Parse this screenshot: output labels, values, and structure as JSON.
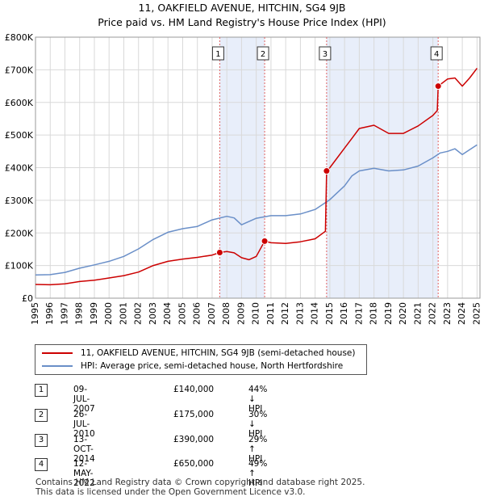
{
  "titles": {
    "line1": "11, OAKFIELD AVENUE, HITCHIN, SG4 9JB",
    "line2": "Price paid vs. HM Land Registry's House Price Index (HPI)"
  },
  "colors": {
    "property": "#cc0000",
    "hpi": "#6a8fc8",
    "shade": "#e8eefa",
    "vline": "#e06060",
    "grid": "#d9d9d9"
  },
  "legend": {
    "property_label": "11, OAKFIELD AVENUE, HITCHIN, SG4 9JB (semi-detached house)",
    "hpi_label": "HPI: Average price, semi-detached house, North Hertfordshire"
  },
  "transactions": [
    {
      "num": "1",
      "date": "09-JUL-2007",
      "price": "£140,000",
      "hpi": "44% ↓ HPI"
    },
    {
      "num": "2",
      "date": "26-JUL-2010",
      "price": "£175,000",
      "hpi": "30% ↓ HPI"
    },
    {
      "num": "3",
      "date": "13-OCT-2014",
      "price": "£390,000",
      "hpi": "29% ↑ HPI"
    },
    {
      "num": "4",
      "date": "12-MAY-2022",
      "price": "£650,000",
      "hpi": "49% ↑ HPI"
    }
  ],
  "footer": {
    "line1": "Contains HM Land Registry data © Crown copyright and database right 2025.",
    "line2": "This data is licensed under the Open Government Licence v3.0."
  },
  "chart_data": {
    "type": "line",
    "title": "11, OAKFIELD AVENUE, HITCHIN, SG4 9JB — Price paid vs. HM Land Registry's House Price Index (HPI)",
    "xlabel": "",
    "ylabel": "",
    "xlim": [
      1995,
      2025.2
    ],
    "ylim": [
      0,
      800000
    ],
    "x_ticks": [
      1995,
      1996,
      1997,
      1998,
      1999,
      2000,
      2001,
      2002,
      2003,
      2004,
      2005,
      2006,
      2007,
      2008,
      2009,
      2010,
      2011,
      2012,
      2013,
      2014,
      2015,
      2016,
      2017,
      2018,
      2019,
      2020,
      2021,
      2022,
      2023,
      2024,
      2025
    ],
    "y_ticks": [
      {
        "value": 0,
        "label": "£0"
      },
      {
        "value": 100000,
        "label": "£100K"
      },
      {
        "value": 200000,
        "label": "£200K"
      },
      {
        "value": 300000,
        "label": "£300K"
      },
      {
        "value": 400000,
        "label": "£400K"
      },
      {
        "value": 500000,
        "label": "£500K"
      },
      {
        "value": 600000,
        "label": "£600K"
      },
      {
        "value": 700000,
        "label": "£700K"
      },
      {
        "value": 800000,
        "label": "£800K"
      }
    ],
    "grid": true,
    "shaded_ranges": [
      [
        2007.52,
        2010.57
      ],
      [
        2014.78,
        2022.36
      ]
    ],
    "series": [
      {
        "name": "11, OAKFIELD AVENUE, HITCHIN, SG4 9JB (semi-detached house)",
        "color": "#cc0000",
        "x": [
          1995,
          1996,
          1997,
          1998,
          1999,
          2000,
          2001,
          2002,
          2003,
          2004,
          2005,
          2006,
          2007,
          2007.52,
          2008,
          2008.5,
          2009,
          2009.5,
          2010,
          2010.57,
          2011,
          2012,
          2013,
          2014,
          2014.7,
          2014.78,
          2015,
          2016,
          2016.5,
          2017,
          2018,
          2019,
          2020,
          2021,
          2022,
          2022.3,
          2022.36,
          2023,
          2023.5,
          2024,
          2024.5,
          2025
        ],
        "values": [
          42000,
          41000,
          44000,
          51000,
          55000,
          62000,
          69000,
          80000,
          100000,
          113000,
          120000,
          125000,
          132000,
          140000,
          143000,
          139000,
          124000,
          118000,
          128000,
          175000,
          170000,
          168000,
          173000,
          182000,
          205000,
          390000,
          400000,
          460000,
          490000,
          520000,
          530000,
          505000,
          505000,
          528000,
          560000,
          575000,
          650000,
          672000,
          675000,
          650000,
          675000,
          705000
        ]
      },
      {
        "name": "HPI: Average price, semi-detached house, North Hertfordshire",
        "color": "#6a8fc8",
        "x": [
          1995,
          1996,
          1997,
          1998,
          1999,
          2000,
          2001,
          2002,
          2003,
          2004,
          2005,
          2006,
          2007,
          2008,
          2008.5,
          2009,
          2010,
          2011,
          2012,
          2013,
          2014,
          2015,
          2016,
          2016.5,
          2017,
          2018,
          2019,
          2020,
          2021,
          2022,
          2022.5,
          2023,
          2023.5,
          2024,
          2024.5,
          2025
        ],
        "values": [
          71000,
          72000,
          79000,
          92000,
          102000,
          113000,
          128000,
          151000,
          180000,
          202000,
          213000,
          220000,
          240000,
          251000,
          246000,
          225000,
          245000,
          253000,
          253000,
          258000,
          272000,
          302000,
          344000,
          375000,
          390000,
          398000,
          390000,
          393000,
          405000,
          430000,
          445000,
          450000,
          458000,
          440000,
          455000,
          470000
        ]
      }
    ],
    "markers": [
      {
        "label": "1",
        "x": 2007.52,
        "y": 140000
      },
      {
        "label": "2",
        "x": 2010.57,
        "y": 175000
      },
      {
        "label": "3",
        "x": 2014.78,
        "y": 390000
      },
      {
        "label": "4",
        "x": 2022.36,
        "y": 650000
      }
    ]
  }
}
